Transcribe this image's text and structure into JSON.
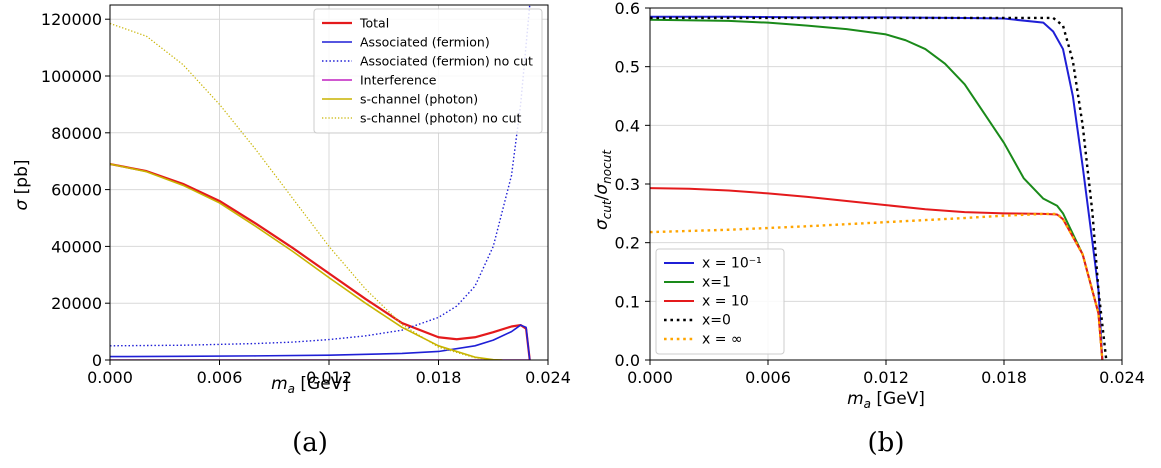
{
  "chart_data": [
    {
      "panel": "(a)",
      "type": "line",
      "xlabel": "m_a [GeV]",
      "ylabel": "σ [pb]",
      "xlim": [
        0.0,
        0.024
      ],
      "ylim": [
        0,
        125000
      ],
      "xticks": [
        "0.000",
        "0.006",
        "0.012",
        "0.018",
        "0.024"
      ],
      "yticks": [
        "0",
        "20000",
        "40000",
        "60000",
        "80000",
        "100000",
        "120000"
      ],
      "grid": true,
      "legend_position": "top-right",
      "series": [
        {
          "name": "Total",
          "color": "#e41a1c",
          "style": "solid",
          "width": 2.2,
          "x": [
            0,
            0.002,
            0.004,
            0.006,
            0.008,
            0.01,
            0.012,
            0.014,
            0.016,
            0.018,
            0.019,
            0.02,
            0.021,
            0.022,
            0.0225,
            0.0228,
            0.023
          ],
          "y": [
            69000,
            66500,
            62000,
            56000,
            48000,
            39500,
            30500,
            21500,
            13000,
            8000,
            7300,
            8000,
            9800,
            11800,
            12300,
            11000,
            0
          ]
        },
        {
          "name": "Associated (fermion)",
          "color": "#1f1fd6",
          "style": "solid",
          "width": 1.6,
          "x": [
            0,
            0.004,
            0.008,
            0.012,
            0.016,
            0.018,
            0.02,
            0.021,
            0.022,
            0.0225,
            0.0228,
            0.023
          ],
          "y": [
            1200,
            1300,
            1450,
            1700,
            2300,
            3000,
            5000,
            7000,
            10000,
            12300,
            11500,
            0
          ]
        },
        {
          "name": "Associated (fermion) no cut",
          "color": "#1f1fd6",
          "style": "dotted",
          "width": 1.4,
          "x": [
            0,
            0.004,
            0.008,
            0.01,
            0.012,
            0.014,
            0.016,
            0.018,
            0.019,
            0.02,
            0.021,
            0.022,
            0.0225,
            0.023
          ],
          "y": [
            5000,
            5200,
            5800,
            6300,
            7200,
            8500,
            10500,
            15000,
            19000,
            26000,
            40000,
            65000,
            90000,
            125000
          ]
        },
        {
          "name": "Interference",
          "color": "#c020c0",
          "style": "solid",
          "width": 1.6,
          "x": [
            0,
            0.01,
            0.02,
            0.0225,
            0.023
          ],
          "y": [
            0,
            0,
            0,
            0,
            0
          ]
        },
        {
          "name": "s-channel (photon)",
          "color": "#c8b400",
          "style": "solid",
          "width": 1.6,
          "x": [
            0,
            0.002,
            0.004,
            0.006,
            0.008,
            0.01,
            0.012,
            0.014,
            0.016,
            0.018,
            0.02,
            0.021,
            0.0215
          ],
          "y": [
            69000,
            66300,
            61500,
            55300,
            47000,
            38300,
            29000,
            20000,
            11500,
            5000,
            1000,
            100,
            0
          ]
        },
        {
          "name": "s-channel (photon) no cut",
          "color": "#c8b400",
          "style": "dotted",
          "width": 1.2,
          "x": [
            0,
            0.002,
            0.004,
            0.006,
            0.008,
            0.01,
            0.012,
            0.014,
            0.016,
            0.018,
            0.02,
            0.021,
            0.0215
          ],
          "y": [
            118500,
            114000,
            104000,
            90000,
            74000,
            57000,
            40000,
            25000,
            12500,
            4500,
            800,
            100,
            0
          ]
        }
      ]
    },
    {
      "panel": "(b)",
      "type": "line",
      "xlabel": "m_a [GeV]",
      "ylabel": "σ_cut/σ_nocut",
      "xlim": [
        0.0,
        0.024
      ],
      "ylim": [
        0.0,
        0.6
      ],
      "xticks": [
        "0.000",
        "0.006",
        "0.012",
        "0.018",
        "0.024"
      ],
      "yticks": [
        "0.0",
        "0.1",
        "0.2",
        "0.3",
        "0.4",
        "0.5",
        "0.6"
      ],
      "grid": true,
      "legend_position": "lower-left",
      "series": [
        {
          "name": "x = 10⁻¹",
          "color": "#1f1fd6",
          "style": "solid",
          "width": 2,
          "x": [
            0,
            0.004,
            0.008,
            0.012,
            0.016,
            0.018,
            0.02,
            0.0205,
            0.021,
            0.0215,
            0.022,
            0.0225,
            0.0228,
            0.023
          ],
          "y": [
            0.585,
            0.585,
            0.584,
            0.584,
            0.583,
            0.582,
            0.575,
            0.56,
            0.53,
            0.45,
            0.33,
            0.2,
            0.12,
            0.0
          ]
        },
        {
          "name": "x=1",
          "color": "#1a8a1a",
          "style": "solid",
          "width": 2,
          "x": [
            0,
            0.004,
            0.006,
            0.008,
            0.01,
            0.012,
            0.013,
            0.014,
            0.015,
            0.016,
            0.017,
            0.018,
            0.019,
            0.02,
            0.0207,
            0.021,
            0.022,
            0.0228,
            0.023
          ],
          "y": [
            0.58,
            0.578,
            0.575,
            0.57,
            0.564,
            0.555,
            0.545,
            0.53,
            0.505,
            0.47,
            0.42,
            0.37,
            0.31,
            0.275,
            0.263,
            0.25,
            0.18,
            0.08,
            0.0
          ]
        },
        {
          "name": "x = 10",
          "color": "#e41a1c",
          "style": "solid",
          "width": 2,
          "x": [
            0,
            0.002,
            0.004,
            0.006,
            0.008,
            0.01,
            0.012,
            0.014,
            0.016,
            0.018,
            0.02,
            0.0207,
            0.021,
            0.022,
            0.0228,
            0.023
          ],
          "y": [
            0.293,
            0.292,
            0.289,
            0.284,
            0.278,
            0.271,
            0.264,
            0.257,
            0.252,
            0.25,
            0.249,
            0.248,
            0.24,
            0.18,
            0.08,
            0.0
          ]
        },
        {
          "name": "x=0",
          "color": "#000000",
          "style": "dotted",
          "width": 2.4,
          "x": [
            0,
            0.01,
            0.0205,
            0.021,
            0.0215,
            0.022,
            0.0225,
            0.0228,
            0.0232
          ],
          "y": [
            0.583,
            0.583,
            0.583,
            0.57,
            0.51,
            0.4,
            0.25,
            0.12,
            0.0
          ]
        },
        {
          "name": "x = ∞",
          "color": "#ffa500",
          "style": "dotted",
          "width": 2.4,
          "x": [
            0,
            0.004,
            0.008,
            0.012,
            0.016,
            0.018,
            0.02,
            0.0207,
            0.021,
            0.022,
            0.0228,
            0.023
          ],
          "y": [
            0.218,
            0.222,
            0.228,
            0.235,
            0.242,
            0.246,
            0.249,
            0.249,
            0.24,
            0.18,
            0.08,
            0.0
          ]
        }
      ]
    }
  ],
  "captions": [
    "(a)",
    "(b)"
  ]
}
